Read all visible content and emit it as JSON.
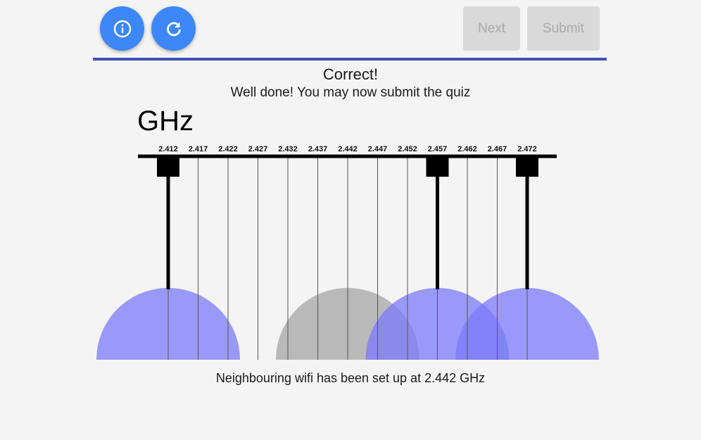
{
  "toolbar": {
    "info_icon": "info-circle-icon",
    "refresh_icon": "refresh-icon",
    "next_label": "Next",
    "submit_label": "Submit"
  },
  "feedback": {
    "title": "Correct!",
    "message": "Well done! You may now submit the quiz"
  },
  "diagram": {
    "unit": "GHz",
    "frequencies": [
      "2.412",
      "2.417",
      "2.422",
      "2.427",
      "2.432",
      "2.437",
      "2.442",
      "2.447",
      "2.452",
      "2.457",
      "2.462",
      "2.467",
      "2.472"
    ],
    "placed_channels": [
      "2.412",
      "2.457",
      "2.472"
    ],
    "neighbour_channel": "2.442",
    "colors": {
      "placed": "#7b7bfb",
      "neighbour": "#a6a6a6",
      "rail": "#000000"
    }
  },
  "caption": "Neighbouring wifi has been set up at 2.442 GHz"
}
